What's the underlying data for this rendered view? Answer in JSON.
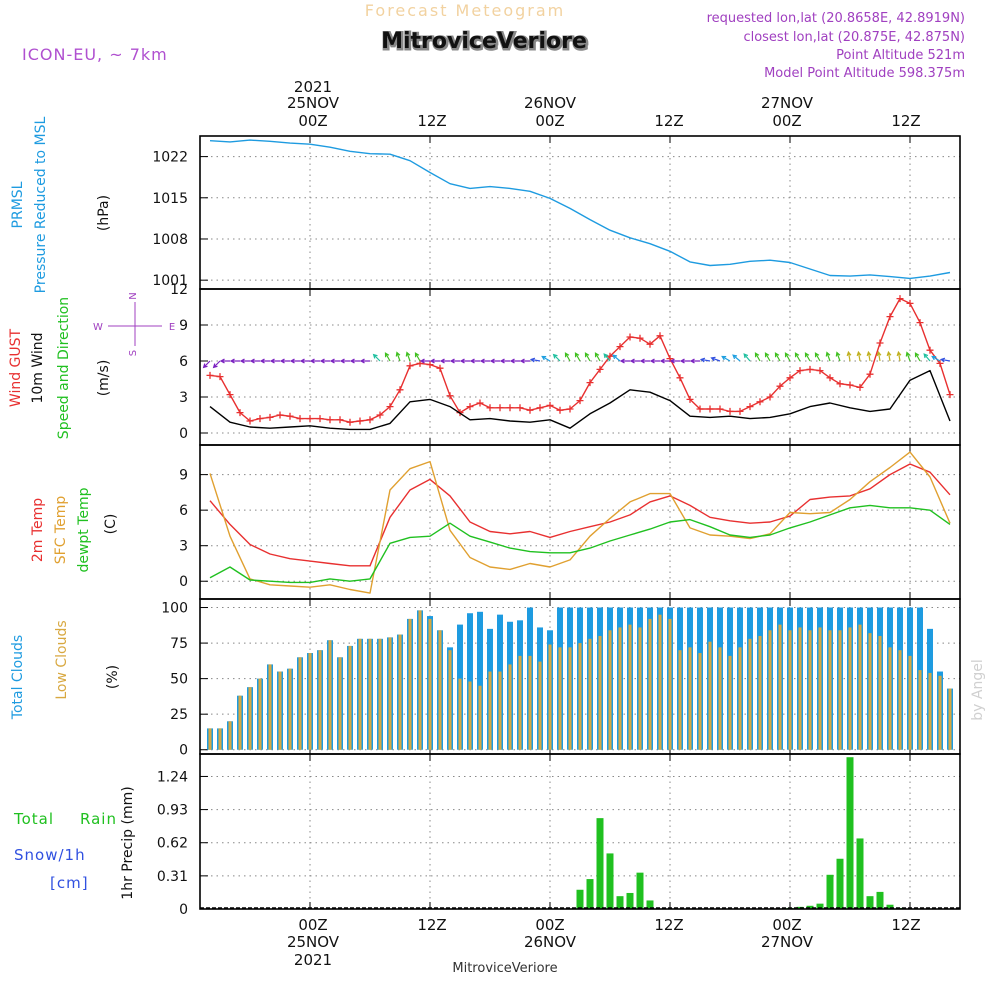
{
  "header": {
    "product": "Forecast Meteogram",
    "station": "MitroviceVeriore",
    "model": "ICON-EU, ~ 7km",
    "requested": "requested lon,lat (20.8658E, 42.8919N)",
    "closest": "closest lon,lat (20.875E, 42.875N)",
    "point_alt": "Point Altitude 521m",
    "model_alt": "Model Point Altitude 598.375m",
    "footer_station": "MitroviceVeriore",
    "credit": "by Angel"
  },
  "time_axis": {
    "year": "2021",
    "day_labels": [
      "25NOV",
      "26NOV",
      "27NOV"
    ],
    "hour_labels": [
      "00Z",
      "12Z",
      "00Z",
      "12Z",
      "00Z",
      "12Z"
    ],
    "range_hours": [
      -11,
      65
    ]
  },
  "colors": {
    "pressure": "#1e9be0",
    "gust": "#e83030",
    "wind": "#000000",
    "temp": "#e83030",
    "sfc": "#e0a030",
    "dew": "#20c020",
    "total_cloud": "#1e9be0",
    "low_cloud": "#d8a840",
    "precip": "#20c020",
    "snow": "#3050e0",
    "axis_note": "#a040c0"
  },
  "chart_data": [
    {
      "type": "line",
      "id": "pressure",
      "labels": [
        "PRMSL",
        "Pressure Reduced to MSL",
        "(hPa)"
      ],
      "ylim": [
        999.5,
        1025.5
      ],
      "yticks": [
        1001,
        1008,
        1015,
        1022
      ],
      "ytick_labels": [
        "1001",
        "1008",
        "1015",
        "1022"
      ],
      "series": [
        {
          "name": "Pressure Reduced to MSL",
          "x": [
            -10,
            -8,
            -6,
            -4,
            -2,
            0,
            2,
            4,
            6,
            8,
            10,
            12,
            14,
            16,
            18,
            20,
            22,
            24,
            26,
            28,
            30,
            32,
            34,
            36,
            38,
            40,
            42,
            44,
            46,
            48,
            50,
            52,
            54,
            56,
            58,
            60,
            62,
            64
          ],
          "values": [
            1024.7,
            1024.5,
            1024.8,
            1024.6,
            1024.3,
            1024.1,
            1023.6,
            1022.9,
            1022.5,
            1022.4,
            1021.3,
            1019.3,
            1017.4,
            1016.6,
            1016.9,
            1016.6,
            1016.1,
            1014.9,
            1013.2,
            1011.3,
            1009.5,
            1008.2,
            1007.2,
            1005.9,
            1004.1,
            1003.5,
            1003.7,
            1004.2,
            1004.4,
            1004.0,
            1002.9,
            1001.8,
            1001.7,
            1001.9,
            1001.6,
            1001.3,
            1001.7,
            1002.3
          ]
        }
      ]
    },
    {
      "type": "line",
      "id": "wind",
      "labels": [
        "Wind GUST",
        "10m Wind",
        "Speed and Direction",
        "(m/s)"
      ],
      "compass": {
        "n": "N",
        "s": "S",
        "w": "W",
        "e": "E"
      },
      "ylim": [
        -1,
        12
      ],
      "yticks": [
        0,
        3,
        6,
        9,
        12
      ],
      "ytick_labels": [
        "0",
        "3",
        "6",
        "9",
        "12"
      ],
      "series": [
        {
          "name": "Wind GUST",
          "x": [
            -10,
            -9,
            -8,
            -7,
            -6,
            -5,
            -4,
            -3,
            -2,
            -1,
            0,
            1,
            2,
            3,
            4,
            5,
            6,
            7,
            8,
            9,
            10,
            11,
            12,
            13,
            14,
            15,
            16,
            17,
            18,
            19,
            20,
            21,
            22,
            23,
            24,
            25,
            26,
            27,
            28,
            29,
            30,
            31,
            32,
            33,
            34,
            35,
            36,
            37,
            38,
            39,
            40,
            41,
            42,
            43,
            44,
            45,
            46,
            47,
            48,
            49,
            50,
            51,
            52,
            53,
            54,
            55,
            56,
            57,
            58,
            59,
            60,
            61,
            62,
            63,
            64
          ],
          "values": [
            4.8,
            4.7,
            3.2,
            1.7,
            1.0,
            1.2,
            1.3,
            1.5,
            1.4,
            1.2,
            1.2,
            1.2,
            1.1,
            1.1,
            0.9,
            1.0,
            1.1,
            1.5,
            2.2,
            3.6,
            5.6,
            5.8,
            5.7,
            5.4,
            3.1,
            1.7,
            2.2,
            2.5,
            2.1,
            2.1,
            2.1,
            2.1,
            1.9,
            2.1,
            2.3,
            1.9,
            2.0,
            2.7,
            4.2,
            5.3,
            6.4,
            7.2,
            8.0,
            7.9,
            7.4,
            8.1,
            6.2,
            4.6,
            2.8,
            2.0,
            2.0,
            2.0,
            1.8,
            1.8,
            2.2,
            2.6,
            3.0,
            3.9,
            4.6,
            5.2,
            5.3,
            5.2,
            4.6,
            4.1,
            4.0,
            3.8,
            4.9,
            7.5,
            9.7,
            11.2,
            10.8,
            9.2,
            6.9,
            5.8,
            3.2
          ]
        },
        {
          "name": "10m Wind",
          "x": [
            -10,
            -8,
            -6,
            -4,
            -2,
            0,
            2,
            4,
            6,
            8,
            10,
            12,
            14,
            16,
            18,
            20,
            22,
            24,
            26,
            28,
            30,
            32,
            34,
            36,
            38,
            40,
            42,
            44,
            46,
            48,
            50,
            52,
            54,
            56,
            58,
            60,
            62,
            64
          ],
          "values": [
            2.2,
            0.9,
            0.5,
            0.4,
            0.5,
            0.6,
            0.4,
            0.3,
            0.3,
            0.8,
            2.6,
            2.8,
            2.2,
            1.1,
            1.2,
            1.0,
            0.9,
            1.1,
            0.4,
            1.6,
            2.5,
            3.6,
            3.4,
            2.7,
            1.4,
            1.3,
            1.4,
            1.2,
            1.3,
            1.6,
            2.2,
            2.5,
            2.1,
            1.8,
            2.0,
            4.4,
            5.2,
            1.0
          ]
        }
      ],
      "arrow_directions_deg": [
        45,
        45,
        90,
        90,
        90,
        90,
        90,
        90,
        90,
        90,
        90,
        90,
        90,
        90,
        90,
        90,
        90,
        135,
        150,
        160,
        160,
        150,
        90,
        90,
        90,
        90,
        90,
        90,
        90,
        90,
        90,
        90,
        90,
        100,
        120,
        135,
        150,
        150,
        150,
        150,
        140,
        130,
        90,
        90,
        90,
        90,
        90,
        90,
        90,
        90,
        100,
        110,
        120,
        130,
        140,
        150,
        150,
        150,
        150,
        150,
        150,
        150,
        160,
        160,
        170,
        170,
        170,
        170,
        170,
        170,
        160,
        150,
        140,
        120,
        100
      ]
    },
    {
      "type": "line",
      "id": "temperature",
      "labels": [
        "2m Temp",
        "SFC Temp",
        "dewpt Temp",
        "(C)"
      ],
      "ylim": [
        -1.5,
        11.5
      ],
      "yticks": [
        0,
        3,
        6,
        9
      ],
      "ytick_labels": [
        "0",
        "3",
        "6",
        "9"
      ],
      "series": [
        {
          "name": "2m Temp",
          "x": [
            -10,
            -8,
            -6,
            -4,
            -2,
            0,
            2,
            4,
            6,
            8,
            10,
            12,
            14,
            16,
            18,
            20,
            22,
            24,
            26,
            28,
            30,
            32,
            34,
            36,
            38,
            40,
            42,
            44,
            46,
            48,
            50,
            52,
            54,
            56,
            58,
            60,
            62,
            64
          ],
          "values": [
            6.8,
            4.8,
            3.1,
            2.3,
            1.9,
            1.7,
            1.5,
            1.3,
            1.3,
            5.4,
            7.7,
            8.6,
            7.2,
            5.0,
            4.2,
            4.0,
            4.2,
            3.7,
            4.2,
            4.6,
            5.0,
            5.6,
            6.7,
            7.2,
            6.4,
            5.4,
            5.1,
            4.9,
            5.0,
            5.5,
            6.9,
            7.1,
            7.2,
            7.8,
            9.0,
            9.9,
            9.2,
            7.3
          ]
        },
        {
          "name": "SFC Temp",
          "x": [
            -10,
            -8,
            -6,
            -4,
            -2,
            0,
            2,
            4,
            6,
            8,
            10,
            12,
            14,
            16,
            18,
            20,
            22,
            24,
            26,
            28,
            30,
            32,
            34,
            36,
            38,
            40,
            42,
            44,
            46,
            48,
            50,
            52,
            54,
            56,
            58,
            60,
            62,
            64
          ],
          "values": [
            9.1,
            3.8,
            0.2,
            -0.3,
            -0.4,
            -0.5,
            -0.3,
            -0.7,
            -1.0,
            7.7,
            9.5,
            10.1,
            4.3,
            2.0,
            1.2,
            1.0,
            1.5,
            1.2,
            1.8,
            3.8,
            5.3,
            6.7,
            7.4,
            7.4,
            4.5,
            3.9,
            3.8,
            3.6,
            4.0,
            5.8,
            5.7,
            5.8,
            6.9,
            8.4,
            9.6,
            10.9,
            8.8,
            4.9
          ]
        },
        {
          "name": "dewpt Temp",
          "x": [
            -10,
            -8,
            -6,
            -4,
            -2,
            0,
            2,
            4,
            6,
            8,
            10,
            12,
            14,
            16,
            18,
            20,
            22,
            24,
            26,
            28,
            30,
            32,
            34,
            36,
            38,
            40,
            42,
            44,
            46,
            48,
            50,
            52,
            54,
            56,
            58,
            60,
            62,
            64
          ],
          "values": [
            0.3,
            1.2,
            0.1,
            0.0,
            -0.1,
            -0.1,
            0.2,
            0.0,
            0.2,
            3.2,
            3.7,
            3.8,
            4.9,
            3.8,
            3.3,
            2.8,
            2.5,
            2.4,
            2.4,
            2.8,
            3.4,
            3.9,
            4.4,
            5.0,
            5.2,
            4.6,
            3.9,
            3.7,
            3.9,
            4.5,
            5.0,
            5.6,
            6.2,
            6.4,
            6.2,
            6.2,
            6.0,
            4.8
          ]
        }
      ]
    },
    {
      "type": "bar",
      "id": "clouds",
      "labels": [
        "Total Clouds",
        "Low Clouds",
        "(%)"
      ],
      "ylim": [
        -3,
        106
      ],
      "yticks": [
        0,
        25,
        50,
        75,
        100
      ],
      "ytick_labels": [
        "0",
        "25",
        "50",
        "75",
        "100"
      ],
      "x": [
        -10,
        -9,
        -8,
        -7,
        -6,
        -5,
        -4,
        -3,
        -2,
        -1,
        0,
        1,
        2,
        3,
        4,
        5,
        6,
        7,
        8,
        9,
        10,
        11,
        12,
        13,
        14,
        15,
        16,
        17,
        18,
        19,
        20,
        21,
        22,
        23,
        24,
        25,
        26,
        27,
        28,
        29,
        30,
        31,
        32,
        33,
        34,
        35,
        36,
        37,
        38,
        39,
        40,
        41,
        42,
        43,
        44,
        45,
        46,
        47,
        48,
        49,
        50,
        51,
        52,
        53,
        54,
        55,
        56,
        57,
        58,
        59,
        60,
        61,
        62,
        63,
        64
      ],
      "series": [
        {
          "name": "Total Clouds",
          "values": [
            15,
            15,
            20,
            38,
            44,
            50,
            60,
            55,
            57,
            65,
            68,
            70,
            77,
            65,
            73,
            78,
            78,
            78,
            79,
            81,
            92,
            98,
            94,
            84,
            72,
            88,
            96,
            97,
            85,
            95,
            90,
            91,
            100,
            86,
            84,
            100,
            100,
            100,
            100,
            100,
            100,
            100,
            100,
            100,
            100,
            100,
            100,
            100,
            100,
            100,
            100,
            100,
            100,
            100,
            100,
            100,
            100,
            100,
            100,
            100,
            100,
            100,
            100,
            100,
            100,
            100,
            100,
            100,
            100,
            100,
            100,
            100,
            85,
            55,
            43
          ]
        },
        {
          "name": "Low Clouds",
          "values": [
            15,
            15,
            20,
            38,
            44,
            50,
            60,
            55,
            57,
            65,
            68,
            70,
            77,
            65,
            73,
            78,
            78,
            78,
            79,
            81,
            92,
            98,
            92,
            84,
            70,
            50,
            48,
            45,
            55,
            55,
            60,
            66,
            66,
            62,
            74,
            72,
            72,
            75,
            78,
            80,
            84,
            86,
            88,
            86,
            92,
            95,
            92,
            70,
            72,
            68,
            76,
            72,
            66,
            72,
            78,
            80,
            84,
            88,
            84,
            86,
            84,
            86,
            84,
            84,
            86,
            88,
            82,
            80,
            72,
            70,
            66,
            56,
            54,
            52,
            43
          ]
        }
      ]
    },
    {
      "type": "bar",
      "id": "precip",
      "labels": [
        "1hr Precip (mm)",
        "Total",
        "Rain",
        "Snow/1h",
        "[cm]"
      ],
      "ylim": [
        0,
        1.45
      ],
      "yticks": [
        0,
        0.31,
        0.62,
        0.93,
        1.24
      ],
      "ytick_labels": [
        "0",
        "0.31",
        "0.62",
        "0.93",
        "1.24"
      ],
      "x": [
        27,
        28,
        29,
        30,
        31,
        32,
        33,
        34,
        35,
        36,
        48,
        49,
        50,
        51,
        52,
        53,
        54,
        55,
        56,
        57,
        58,
        59,
        60
      ],
      "series": [
        {
          "name": "Rain",
          "values": [
            0.18,
            0.28,
            0.85,
            0.52,
            0.12,
            0.15,
            0.34,
            0.08,
            0,
            0,
            0.01,
            0.02,
            0.03,
            0.05,
            0.32,
            0.47,
            1.42,
            0.66,
            0.12,
            0.16,
            0.04,
            0.01,
            0.0
          ]
        }
      ]
    }
  ]
}
